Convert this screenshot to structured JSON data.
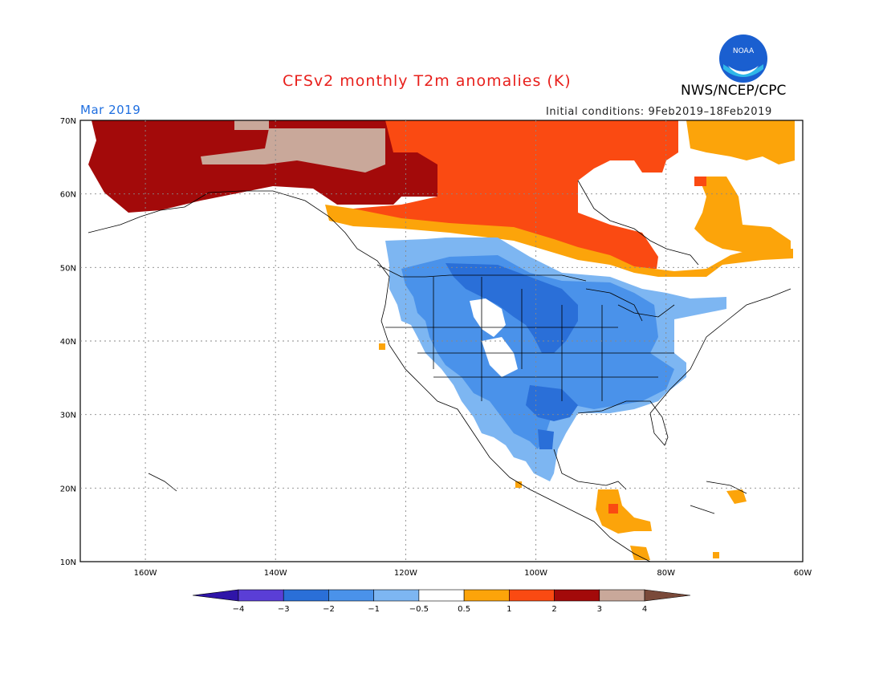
{
  "header": {
    "title": "CFSv2 monthly T2m anomalies (K)",
    "agency": "NWS/NCEP/CPC",
    "month": "Mar 2019",
    "initial_conditions": "Initial conditions: 9Feb2019–18Feb2019",
    "logo_text": "NOAA"
  },
  "map": {
    "lat_labels": [
      "70N",
      "60N",
      "50N",
      "40N",
      "30N",
      "20N",
      "10N"
    ],
    "lon_labels": [
      "160W",
      "140W",
      "120W",
      "100W",
      "80W",
      "60W"
    ],
    "lat_range": [
      10,
      70
    ],
    "lon_range": [
      -171,
      -60
    ]
  },
  "colorbar": {
    "levels": [
      "-4",
      "-3",
      "-2",
      "-1",
      "-0.5",
      "0.5",
      "1",
      "2",
      "3",
      "4"
    ],
    "colors": [
      "#2f15a8",
      "#5a3ed6",
      "#2a6fd8",
      "#4a92ea",
      "#7db6f2",
      "#ffffff",
      "#fca40a",
      "#fa4a12",
      "#a30a0a",
      "#c9a89a",
      "#7a4a3a"
    ]
  },
  "palette": {
    "strong_cold": "#2a6fd8",
    "cold": "#4a92ea",
    "weak_cold": "#7db6f2",
    "weak_warm": "#fca40a",
    "warm": "#fa4a12",
    "strong_warm": "#a30a0a",
    "extreme_warm": "#c9a89a"
  }
}
